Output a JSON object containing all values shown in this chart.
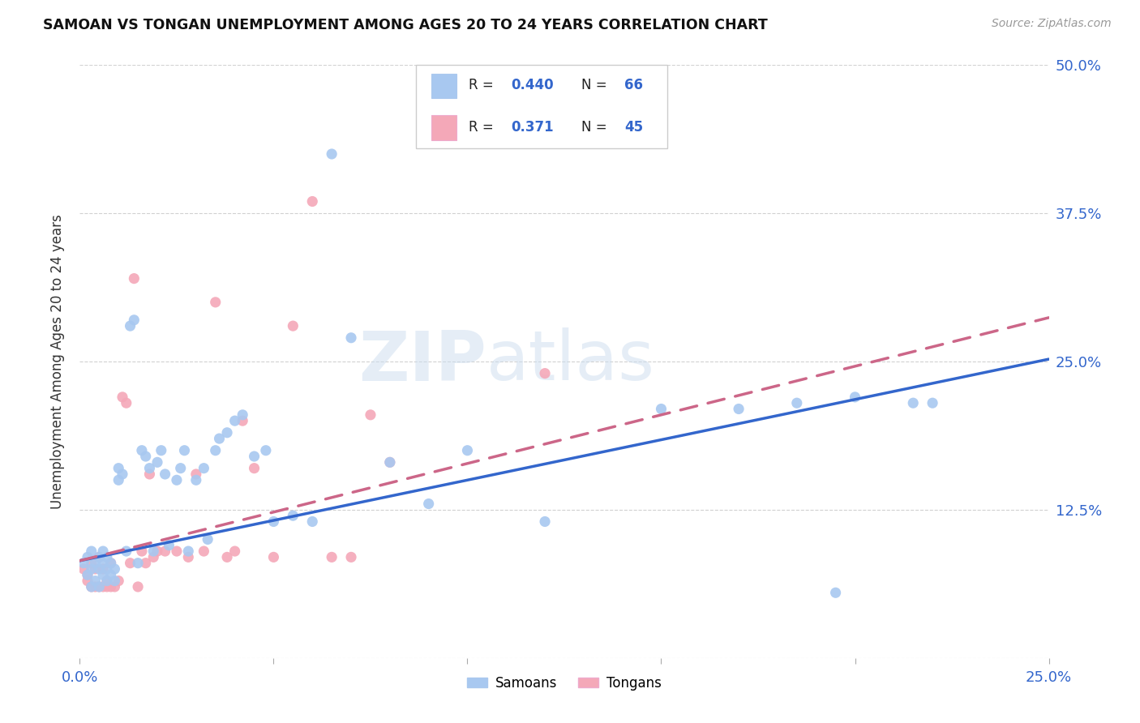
{
  "title": "SAMOAN VS TONGAN UNEMPLOYMENT AMONG AGES 20 TO 24 YEARS CORRELATION CHART",
  "source": "Source: ZipAtlas.com",
  "ylabel": "Unemployment Among Ages 20 to 24 years",
  "xlim": [
    0.0,
    0.25
  ],
  "ylim": [
    0.0,
    0.5
  ],
  "xticks": [
    0.0,
    0.05,
    0.1,
    0.15,
    0.2,
    0.25
  ],
  "yticks": [
    0.0,
    0.125,
    0.25,
    0.375,
    0.5
  ],
  "xticklabels": [
    "0.0%",
    "",
    "",
    "",
    "",
    "25.0%"
  ],
  "yticklabels_right": [
    "",
    "12.5%",
    "25.0%",
    "37.5%",
    "50.0%"
  ],
  "samoan_color": "#a8c8f0",
  "tongan_color": "#f4a8b8",
  "samoan_line_color": "#3366cc",
  "tongan_line_color": "#cc6688",
  "samoan_R": 0.44,
  "samoan_N": 66,
  "tongan_R": 0.371,
  "tongan_N": 45,
  "legend_label_samoan": "Samoans",
  "legend_label_tongan": "Tongans",
  "background_color": "#ffffff",
  "grid_color": "#cccccc",
  "accent_color": "#3366cc",
  "samoan_line_intercept": 0.082,
  "samoan_line_slope": 0.68,
  "tongan_line_intercept": 0.082,
  "tongan_line_slope": 0.82,
  "samoan_x": [
    0.001,
    0.002,
    0.002,
    0.003,
    0.003,
    0.003,
    0.004,
    0.004,
    0.005,
    0.005,
    0.005,
    0.006,
    0.006,
    0.006,
    0.007,
    0.007,
    0.007,
    0.008,
    0.008,
    0.009,
    0.009,
    0.01,
    0.01,
    0.011,
    0.012,
    0.013,
    0.014,
    0.015,
    0.016,
    0.017,
    0.018,
    0.019,
    0.02,
    0.021,
    0.022,
    0.023,
    0.025,
    0.026,
    0.027,
    0.028,
    0.03,
    0.032,
    0.033,
    0.035,
    0.036,
    0.038,
    0.04,
    0.042,
    0.045,
    0.048,
    0.05,
    0.055,
    0.06,
    0.065,
    0.07,
    0.08,
    0.09,
    0.1,
    0.12,
    0.15,
    0.17,
    0.185,
    0.195,
    0.2,
    0.215,
    0.22
  ],
  "samoan_y": [
    0.08,
    0.085,
    0.07,
    0.075,
    0.09,
    0.06,
    0.08,
    0.065,
    0.075,
    0.085,
    0.06,
    0.08,
    0.07,
    0.09,
    0.075,
    0.065,
    0.085,
    0.07,
    0.08,
    0.075,
    0.065,
    0.15,
    0.16,
    0.155,
    0.09,
    0.28,
    0.285,
    0.08,
    0.175,
    0.17,
    0.16,
    0.09,
    0.165,
    0.175,
    0.155,
    0.095,
    0.15,
    0.16,
    0.175,
    0.09,
    0.15,
    0.16,
    0.1,
    0.175,
    0.185,
    0.19,
    0.2,
    0.205,
    0.17,
    0.175,
    0.115,
    0.12,
    0.115,
    0.425,
    0.27,
    0.165,
    0.13,
    0.175,
    0.115,
    0.21,
    0.21,
    0.215,
    0.055,
    0.22,
    0.215,
    0.215
  ],
  "tongan_x": [
    0.001,
    0.002,
    0.002,
    0.003,
    0.003,
    0.004,
    0.004,
    0.005,
    0.005,
    0.006,
    0.006,
    0.007,
    0.007,
    0.008,
    0.008,
    0.009,
    0.01,
    0.011,
    0.012,
    0.013,
    0.014,
    0.015,
    0.016,
    0.017,
    0.018,
    0.019,
    0.02,
    0.022,
    0.025,
    0.028,
    0.03,
    0.032,
    0.035,
    0.038,
    0.04,
    0.042,
    0.045,
    0.05,
    0.055,
    0.06,
    0.065,
    0.07,
    0.075,
    0.08,
    0.12
  ],
  "tongan_y": [
    0.075,
    0.07,
    0.065,
    0.08,
    0.06,
    0.075,
    0.06,
    0.085,
    0.06,
    0.075,
    0.06,
    0.065,
    0.06,
    0.08,
    0.06,
    0.06,
    0.065,
    0.22,
    0.215,
    0.08,
    0.32,
    0.06,
    0.09,
    0.08,
    0.155,
    0.085,
    0.09,
    0.09,
    0.09,
    0.085,
    0.155,
    0.09,
    0.3,
    0.085,
    0.09,
    0.2,
    0.16,
    0.085,
    0.28,
    0.385,
    0.085,
    0.085,
    0.205,
    0.165,
    0.24
  ]
}
